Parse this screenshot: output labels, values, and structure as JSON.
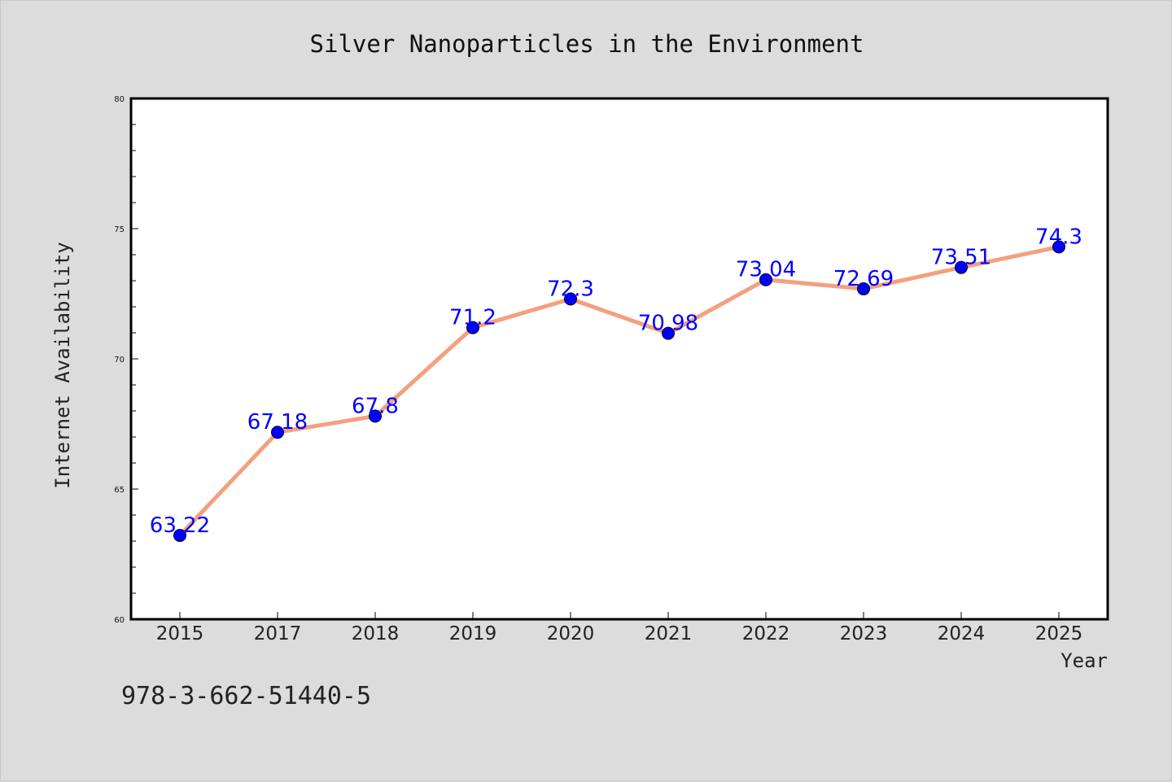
{
  "chart_data": {
    "type": "line",
    "title": "Silver Nanoparticles in the Environment",
    "xlabel": "Year",
    "ylabel": "Internet Availability",
    "categories": [
      "2015",
      "2017",
      "2018",
      "2019",
      "2020",
      "2021",
      "2022",
      "2023",
      "2024",
      "2025"
    ],
    "series": [
      {
        "values": [
          63.22,
          67.18,
          67.8,
          71.2,
          72.3,
          70.98,
          73.04,
          72.69,
          73.51,
          74.3
        ],
        "line_color": "#f4a07e",
        "marker_color": "#0000ff"
      }
    ],
    "data_labels": [
      "63.22",
      "67.18",
      "67.8",
      "71.2",
      "72.3",
      "70.98",
      "73.04",
      "72.69",
      "73.51",
      "74.3"
    ],
    "ylim": [
      60,
      80
    ],
    "yticks": [
      "60",
      "65",
      "70",
      "75",
      "80"
    ],
    "grid": false,
    "legend": "none"
  },
  "footer": {
    "isbn": "978-3-662-51440-5"
  },
  "colors": {
    "background": "#dcdcdc",
    "plot_background": "#ffffff",
    "line": "#f4a07e",
    "marker": "#0000ff",
    "data_label": "#0000ff"
  }
}
